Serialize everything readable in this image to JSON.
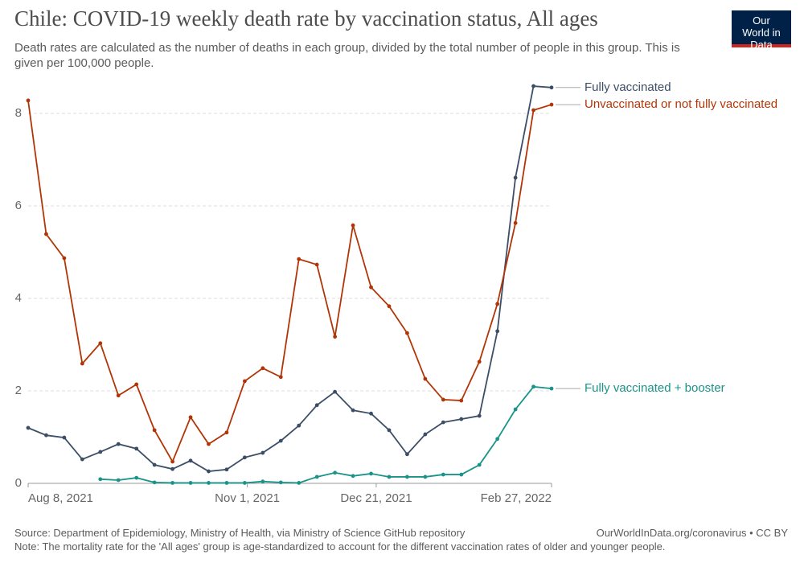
{
  "header": {
    "title": "Chile: COVID-19 weekly death rate by vaccination status, All ages",
    "subtitle": "Death rates are calculated as the number of deaths in each group, divided by the total number of people in this group. This is given per 100,000 people.",
    "logo": "Our World in Data"
  },
  "chart_data": {
    "type": "line",
    "x": [
      "2021-08-08",
      "2021-08-15",
      "2021-08-22",
      "2021-08-29",
      "2021-09-05",
      "2021-09-12",
      "2021-09-19",
      "2021-09-26",
      "2021-10-03",
      "2021-10-10",
      "2021-10-17",
      "2021-10-24",
      "2021-10-31",
      "2021-11-07",
      "2021-11-14",
      "2021-11-21",
      "2021-11-28",
      "2021-12-05",
      "2021-12-12",
      "2021-12-19",
      "2021-12-26",
      "2022-01-02",
      "2022-01-09",
      "2022-01-16",
      "2022-01-23",
      "2022-01-30",
      "2022-02-06",
      "2022-02-13",
      "2022-02-20",
      "2022-02-27"
    ],
    "xlim": [
      "2021-08-08",
      "2022-02-27"
    ],
    "xticks": [
      {
        "value": "2021-08-08",
        "label": "Aug 8, 2021"
      },
      {
        "value": "2021-11-01",
        "label": "Nov 1, 2021"
      },
      {
        "value": "2021-12-21",
        "label": "Dec 21, 2021"
      },
      {
        "value": "2022-02-27",
        "label": "Feb 27, 2022"
      }
    ],
    "ylim": [
      0,
      8.6
    ],
    "yticks": [
      0,
      2,
      4,
      6,
      8
    ],
    "grid": true,
    "series": [
      {
        "name": "Fully vaccinated",
        "color": "#3c4e66",
        "values": [
          1.2,
          1.04,
          0.99,
          0.52,
          0.68,
          0.85,
          0.75,
          0.4,
          0.31,
          0.49,
          0.26,
          0.3,
          0.56,
          0.66,
          0.92,
          1.25,
          1.69,
          1.98,
          1.58,
          1.51,
          1.15,
          0.63,
          1.06,
          1.32,
          1.39,
          1.46,
          3.29,
          6.61,
          8.59,
          8.56
        ]
      },
      {
        "name": "Unvaccinated or not fully vaccinated",
        "color": "#b13507",
        "values": [
          8.28,
          5.39,
          4.87,
          2.59,
          3.03,
          1.9,
          2.14,
          1.15,
          0.47,
          1.43,
          0.85,
          1.1,
          2.21,
          2.49,
          2.3,
          4.85,
          4.73,
          3.17,
          5.58,
          4.24,
          3.83,
          3.25,
          2.26,
          1.81,
          1.79,
          2.63,
          3.88,
          5.63,
          8.07,
          8.19
        ]
      },
      {
        "name": "Fully vaccinated + booster",
        "color": "#1a9488",
        "values": [
          null,
          null,
          null,
          null,
          0.09,
          0.07,
          0.12,
          0.02,
          0.01,
          0.01,
          0.01,
          0.01,
          0.01,
          0.04,
          0.02,
          0.01,
          0.14,
          0.23,
          0.16,
          0.21,
          0.14,
          0.14,
          0.14,
          0.19,
          0.19,
          0.4,
          0.96,
          1.6,
          2.09,
          2.05
        ]
      }
    ]
  },
  "footer": {
    "source": "Source: Department of Epidemiology, Ministry of Health, via Ministry of Science GitHub repository",
    "license": "OurWorldInData.org/coronavirus • CC BY",
    "note": "Note: The mortality rate for the 'All ages' group is age-standardized to account for the different vaccination rates of older and younger people."
  }
}
